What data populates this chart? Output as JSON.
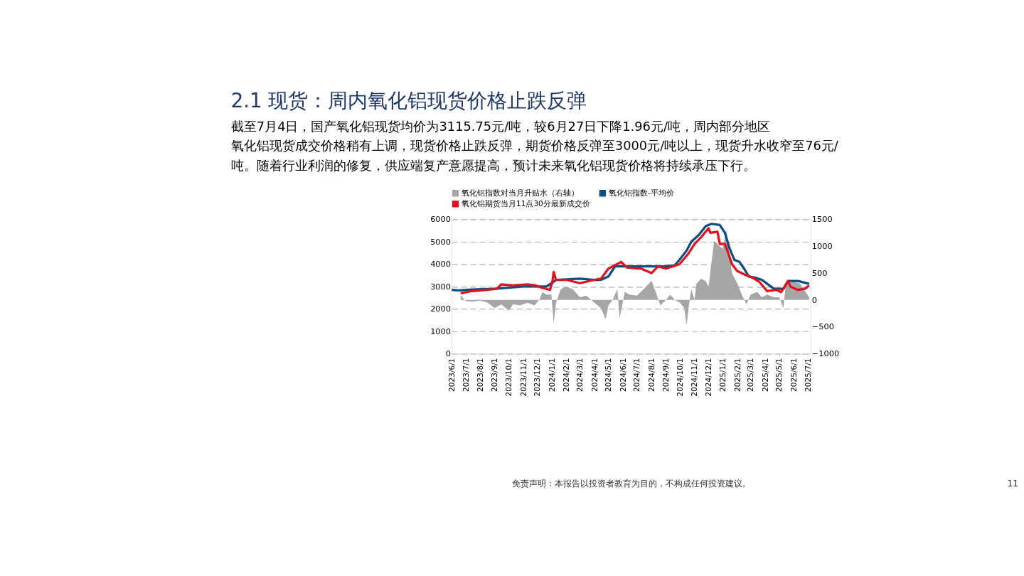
{
  "chart_data": {
    "type": "line",
    "title": "2.1 现货：周内氧化铝现货价格止跌反弹",
    "subtitle": [
      "截至7月4日，国产氧化铝现货均价为3115.75元/吨，较6月27日下降1.96元/吨，周内部分地区",
      "氧化铝现货成交价格稍有上调，现货价格止跌反弹，期货价格反弹至3000元/吨以上，现货升水收窄至76元/",
      "吨。随着行业利润的修复，供应端复产意愿提高，预计未来氧化铝现货价格将持续承压下行。"
    ],
    "annotations": [
      "免责声明：本报告以投资者教育为目的，不构成任何投资建议。",
      "11"
    ],
    "legend": "top",
    "grid": "y",
    "line_style": "solid",
    "marker": "none",
    "xlim": [
      "2023-06-01",
      "2025-07-07"
    ],
    "xticks": [
      {
        "value": "2023-06-01",
        "label": "2023/6/1"
      },
      {
        "value": "2023-07-01",
        "label": "2023/7/1"
      },
      {
        "value": "2023-08-01",
        "label": "2023/8/1"
      },
      {
        "value": "2023-09-01",
        "label": "2023/9/1"
      },
      {
        "value": "2023-10-01",
        "label": "2023/10/1"
      },
      {
        "value": "2023-11-01",
        "label": "2023/11/1"
      },
      {
        "value": "2023-12-01",
        "label": "2023/12/1"
      },
      {
        "value": "2024-01-01",
        "label": "2024/1/1"
      },
      {
        "value": "2024-02-01",
        "label": "2024/2/1"
      },
      {
        "value": "2024-03-01",
        "label": "2024/3/1"
      },
      {
        "value": "2024-04-01",
        "label": "2024/4/1"
      },
      {
        "value": "2024-05-01",
        "label": "2024/5/1"
      },
      {
        "value": "2024-06-01",
        "label": "2024/6/1"
      },
      {
        "value": "2024-07-01",
        "label": "2024/7/1"
      },
      {
        "value": "2024-08-01",
        "label": "2024/8/1"
      },
      {
        "value": "2024-09-01",
        "label": "2024/9/1"
      },
      {
        "value": "2024-10-01",
        "label": "2024/10/1"
      },
      {
        "value": "2024-11-01",
        "label": "2024/11/1"
      },
      {
        "value": "2024-12-01",
        "label": "2024/12/1"
      },
      {
        "value": "2025-01-01",
        "label": "2025/1/1"
      },
      {
        "value": "2025-02-01",
        "label": "2025/2/1"
      },
      {
        "value": "2025-03-01",
        "label": "2025/3/1"
      },
      {
        "value": "2025-04-01",
        "label": "2025/4/1"
      },
      {
        "value": "2025-05-01",
        "label": "2025/5/1"
      },
      {
        "value": "2025-06-01",
        "label": "2025/6/1"
      },
      {
        "value": "2025-07-01",
        "label": "2025/7/1"
      }
    ],
    "ylim": [
      0,
      6000
    ],
    "yticks": [
      0,
      1000,
      2000,
      3000,
      4000,
      5000,
      6000
    ],
    "y2lim": [
      -1000,
      1500
    ],
    "y2ticks": [
      -1000,
      -500,
      0,
      500,
      1000,
      1500
    ],
    "series": [
      {
        "name": "氧化铝指数对当月升贴水（右轴）",
        "type": "area",
        "axis": "y2",
        "color": "#a6a6a6",
        "x": [
          "2023-06-20",
          "2023-07-01",
          "2023-07-15",
          "2023-08-01",
          "2023-08-15",
          "2023-09-01",
          "2023-09-15",
          "2023-10-01",
          "2023-10-10",
          "2023-10-25",
          "2023-11-10",
          "2023-11-25",
          "2023-12-05",
          "2023-12-12",
          "2023-12-20",
          "2023-12-31",
          "2024-01-05",
          "2024-01-10",
          "2024-01-20",
          "2024-02-01",
          "2024-02-15",
          "2024-03-01",
          "2024-03-15",
          "2024-04-01",
          "2024-04-15",
          "2024-04-25",
          "2024-05-01",
          "2024-05-10",
          "2024-05-20",
          "2024-05-25",
          "2024-06-05",
          "2024-06-15",
          "2024-07-01",
          "2024-07-15",
          "2024-08-01",
          "2024-08-10",
          "2024-08-20",
          "2024-09-01",
          "2024-09-10",
          "2024-09-20",
          "2024-10-01",
          "2024-10-10",
          "2024-10-15",
          "2024-10-20",
          "2024-10-25",
          "2024-11-01",
          "2024-11-05",
          "2024-11-15",
          "2024-11-25",
          "2024-12-01",
          "2024-12-13",
          "2024-12-31",
          "2025-01-08",
          "2025-01-20",
          "2025-02-01",
          "2025-02-10",
          "2025-02-20",
          "2025-03-01",
          "2025-03-15",
          "2025-03-25",
          "2025-04-05",
          "2025-04-20",
          "2025-05-01",
          "2025-05-10",
          "2025-05-15",
          "2025-06-01",
          "2025-06-15",
          "2025-07-04"
        ],
        "values": [
          90,
          -20,
          -30,
          -10,
          -40,
          -150,
          -80,
          -200,
          -80,
          -100,
          -50,
          -100,
          0,
          150,
          100,
          100,
          -430,
          -50,
          200,
          250,
          200,
          50,
          80,
          -50,
          -150,
          -360,
          -100,
          0,
          200,
          -340,
          150,
          100,
          80,
          200,
          360,
          150,
          -100,
          0,
          100,
          0,
          -50,
          -150,
          -470,
          -100,
          200,
          0,
          300,
          400,
          350,
          250,
          1100,
          950,
          1300,
          500,
          300,
          100,
          -80,
          100,
          150,
          50,
          100,
          50,
          50,
          -150,
          300,
          350,
          300,
          50
        ]
      },
      {
        "name": "氧化铝指数-平均价",
        "type": "line",
        "color": "#0b4f80",
        "x": [
          "2023-06-01",
          "2023-06-15",
          "2023-07-15",
          "2023-09-01",
          "2023-11-01",
          "2023-12-20",
          "2024-01-01",
          "2024-01-10",
          "2024-03-01",
          "2024-04-01",
          "2024-04-15",
          "2024-05-01",
          "2024-05-15",
          "2024-06-15",
          "2024-08-31",
          "2024-09-20",
          "2024-09-30",
          "2024-10-15",
          "2024-10-25",
          "2024-11-10",
          "2024-11-25",
          "2024-12-07",
          "2024-12-25",
          "2025-01-05",
          "2025-01-15",
          "2025-01-25",
          "2025-02-05",
          "2025-02-15",
          "2025-02-25",
          "2025-03-10",
          "2025-03-25",
          "2025-04-10",
          "2025-04-20",
          "2025-05-10",
          "2025-05-20",
          "2025-06-10",
          "2025-07-04"
        ],
        "values": [
          2850,
          2830,
          2870,
          2900,
          3000,
          3000,
          3150,
          3300,
          3350,
          3300,
          3300,
          3450,
          3900,
          3900,
          3900,
          3950,
          4200,
          4600,
          5000,
          5300,
          5700,
          5800,
          5750,
          5400,
          4700,
          4200,
          4100,
          3800,
          3450,
          3400,
          3300,
          3050,
          2900,
          2900,
          3250,
          3250,
          3120
        ]
      },
      {
        "name": "氧化铝期货当月11点30分最新成交价",
        "type": "line",
        "color": "#e0101e",
        "x": [
          "2023-06-20",
          "2023-07-15",
          "2023-08-15",
          "2023-09-05",
          "2023-09-15",
          "2023-10-10",
          "2023-11-10",
          "2023-11-28",
          "2023-12-10",
          "2023-12-28",
          "2024-01-02",
          "2024-01-05",
          "2024-01-10",
          "2024-02-01",
          "2024-03-01",
          "2024-04-01",
          "2024-04-15",
          "2024-05-01",
          "2024-05-28",
          "2024-06-10",
          "2024-07-10",
          "2024-08-01",
          "2024-08-15",
          "2024-09-01",
          "2024-09-30",
          "2024-10-20",
          "2024-11-01",
          "2024-11-15",
          "2024-12-01",
          "2024-12-05",
          "2024-12-20",
          "2024-12-25",
          "2025-01-05",
          "2025-01-12",
          "2025-01-20",
          "2025-01-31",
          "2025-02-20",
          "2025-03-05",
          "2025-03-20",
          "2025-04-05",
          "2025-04-25",
          "2025-05-05",
          "2025-05-20",
          "2025-05-25",
          "2025-06-10",
          "2025-06-25",
          "2025-07-04"
        ],
        "values": [
          2700,
          2800,
          2850,
          2900,
          3100,
          3050,
          3100,
          3050,
          2950,
          2850,
          3200,
          3650,
          3300,
          3300,
          3150,
          3300,
          3350,
          3800,
          4100,
          3850,
          3800,
          3600,
          3900,
          3800,
          4000,
          4500,
          4900,
          5200,
          5600,
          5400,
          5450,
          4900,
          4900,
          4500,
          4000,
          3700,
          3500,
          3400,
          3200,
          2800,
          2850,
          2750,
          3250,
          3000,
          2850,
          2900,
          3050
        ]
      }
    ]
  }
}
